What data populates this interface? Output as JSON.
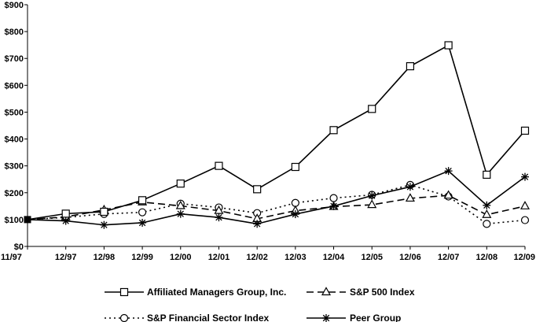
{
  "chart_data": {
    "type": "line",
    "categories": [
      "11/97",
      "12/97",
      "12/98",
      "12/99",
      "12/00",
      "12/01",
      "12/02",
      "12/03",
      "12/04",
      "12/05",
      "12/06",
      "12/07",
      "12/08",
      "12/09"
    ],
    "y_ticks": [
      "$0",
      "$100",
      "$200",
      "$300",
      "$400",
      "$500",
      "$600",
      "$700",
      "$800",
      "$900"
    ],
    "ylim": [
      0,
      900
    ],
    "grid": false,
    "legend_position": "bottom",
    "series": [
      {
        "name": "Affiliated Managers Group, Inc.",
        "marker": "square",
        "dash": "solid",
        "values": [
          100,
          122,
          129,
          172,
          234,
          300,
          213,
          296,
          433,
          512,
          671,
          749,
          267,
          431
        ]
      },
      {
        "name": "S&P 500 Index",
        "marker": "triangle",
        "dash": "dash",
        "values": [
          100,
          110,
          136,
          165,
          151,
          133,
          103,
          133,
          148,
          155,
          179,
          190,
          118,
          150
        ]
      },
      {
        "name": "S&P Financial Sector Index",
        "marker": "circle",
        "dash": "dot",
        "values": [
          100,
          108,
          121,
          127,
          159,
          145,
          124,
          162,
          180,
          192,
          229,
          186,
          84,
          98
        ]
      },
      {
        "name": "Peer Group",
        "marker": "asterisk",
        "dash": "solid",
        "values": [
          100,
          95,
          80,
          88,
          121,
          108,
          84,
          120,
          150,
          189,
          222,
          281,
          153,
          259
        ]
      }
    ]
  }
}
